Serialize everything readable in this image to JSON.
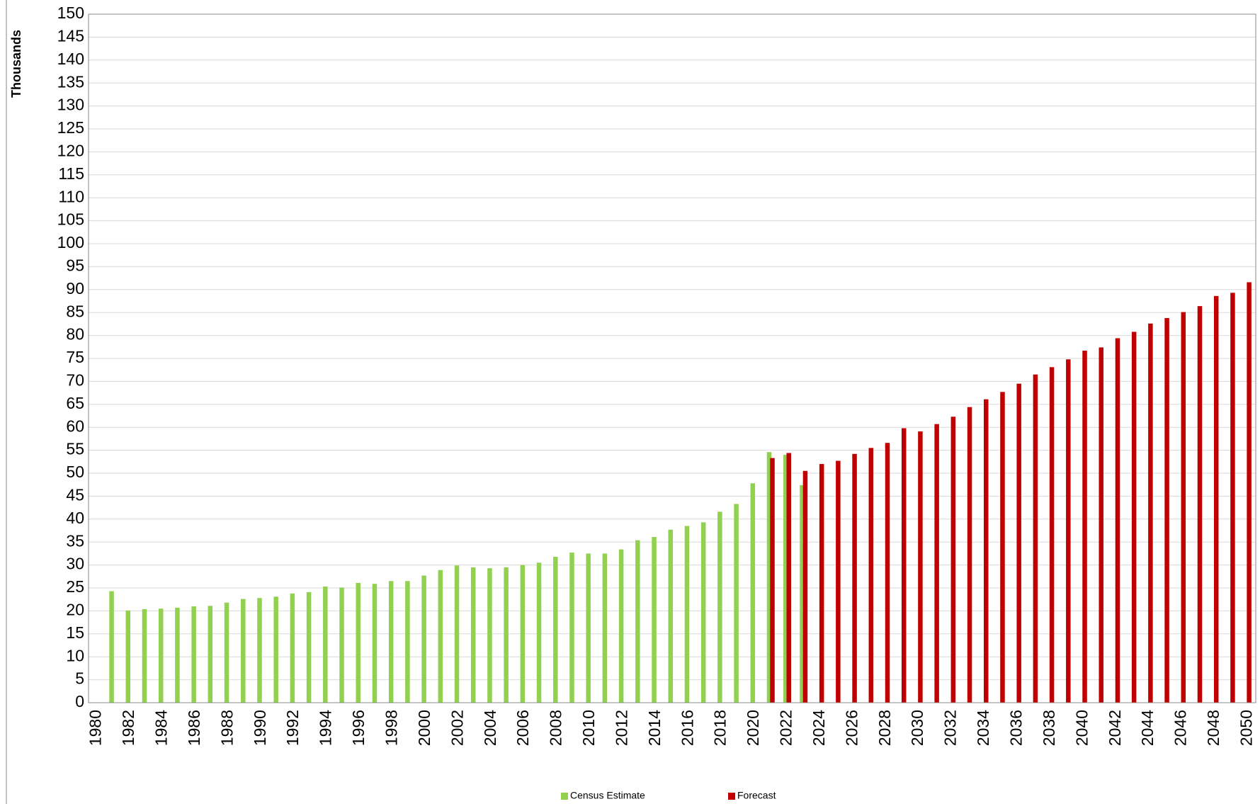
{
  "chart_data": {
    "type": "bar",
    "y_label": "Thousands",
    "categories": [
      "1980",
      null,
      "1982",
      null,
      "1984",
      null,
      "1986",
      null,
      "1988",
      null,
      "1990",
      null,
      "1992",
      null,
      "1994",
      null,
      "1996",
      null,
      "1998",
      null,
      "2000",
      null,
      "2002",
      null,
      "2004",
      null,
      "2006",
      null,
      "2008",
      null,
      "2010",
      null,
      "2012",
      null,
      "2014",
      null,
      "2016",
      null,
      "2018",
      null,
      "2020",
      null,
      "2022",
      null,
      "2024",
      null,
      "2026",
      null,
      "2028",
      null,
      "2030",
      null,
      "2032",
      null,
      "2034",
      null,
      "2036",
      null,
      "2038",
      null,
      "2040",
      null,
      "2042",
      null,
      "2044",
      null,
      "2046",
      null,
      "2048",
      null,
      "2050"
    ],
    "series": [
      {
        "name": "Census Estimate",
        "color": "#92d050",
        "values": [
          null,
          24.3,
          20.1,
          20.4,
          20.5,
          20.7,
          21.0,
          21.1,
          21.8,
          22.6,
          22.8,
          23.1,
          23.8,
          24.1,
          25.3,
          25.1,
          26.1,
          25.9,
          26.5,
          26.5,
          27.7,
          28.9,
          29.9,
          29.5,
          29.3,
          29.5,
          30.0,
          30.5,
          31.8,
          32.7,
          32.5,
          32.5,
          33.4,
          35.4,
          36.1,
          37.7,
          38.5,
          39.3,
          41.6,
          43.3,
          47.8,
          54.6,
          54.0,
          47.4,
          null,
          null,
          null,
          null,
          null,
          null,
          null,
          null,
          null,
          null,
          null,
          null,
          null,
          null,
          null,
          null,
          null,
          null,
          null,
          null,
          null,
          null,
          null,
          null,
          null,
          null,
          null
        ]
      },
      {
        "name": "Forecast",
        "color": "#c00000",
        "values": [
          null,
          null,
          null,
          null,
          null,
          null,
          null,
          null,
          null,
          null,
          null,
          null,
          null,
          null,
          null,
          null,
          null,
          null,
          null,
          null,
          null,
          null,
          null,
          null,
          null,
          null,
          null,
          null,
          null,
          null,
          null,
          null,
          null,
          null,
          null,
          null,
          null,
          null,
          null,
          null,
          null,
          53.3,
          54.4,
          50.5,
          52.0,
          52.7,
          54.2,
          55.5,
          56.6,
          59.8,
          59.1,
          60.7,
          62.3,
          64.4,
          66.1,
          67.7,
          69.5,
          71.5,
          73.1,
          74.8,
          76.7,
          77.4,
          79.4,
          80.8,
          82.6,
          83.8,
          85.1,
          86.4,
          88.6,
          89.3,
          91.6
        ]
      }
    ],
    "ylim": [
      0,
      150
    ],
    "yticks": [
      0,
      5,
      10,
      15,
      20,
      25,
      30,
      35,
      40,
      45,
      50,
      55,
      60,
      65,
      70,
      75,
      80,
      85,
      90,
      95,
      100,
      105,
      110,
      115,
      120,
      125,
      130,
      135,
      140,
      145,
      150
    ],
    "grid": true,
    "legend": "bottom"
  }
}
